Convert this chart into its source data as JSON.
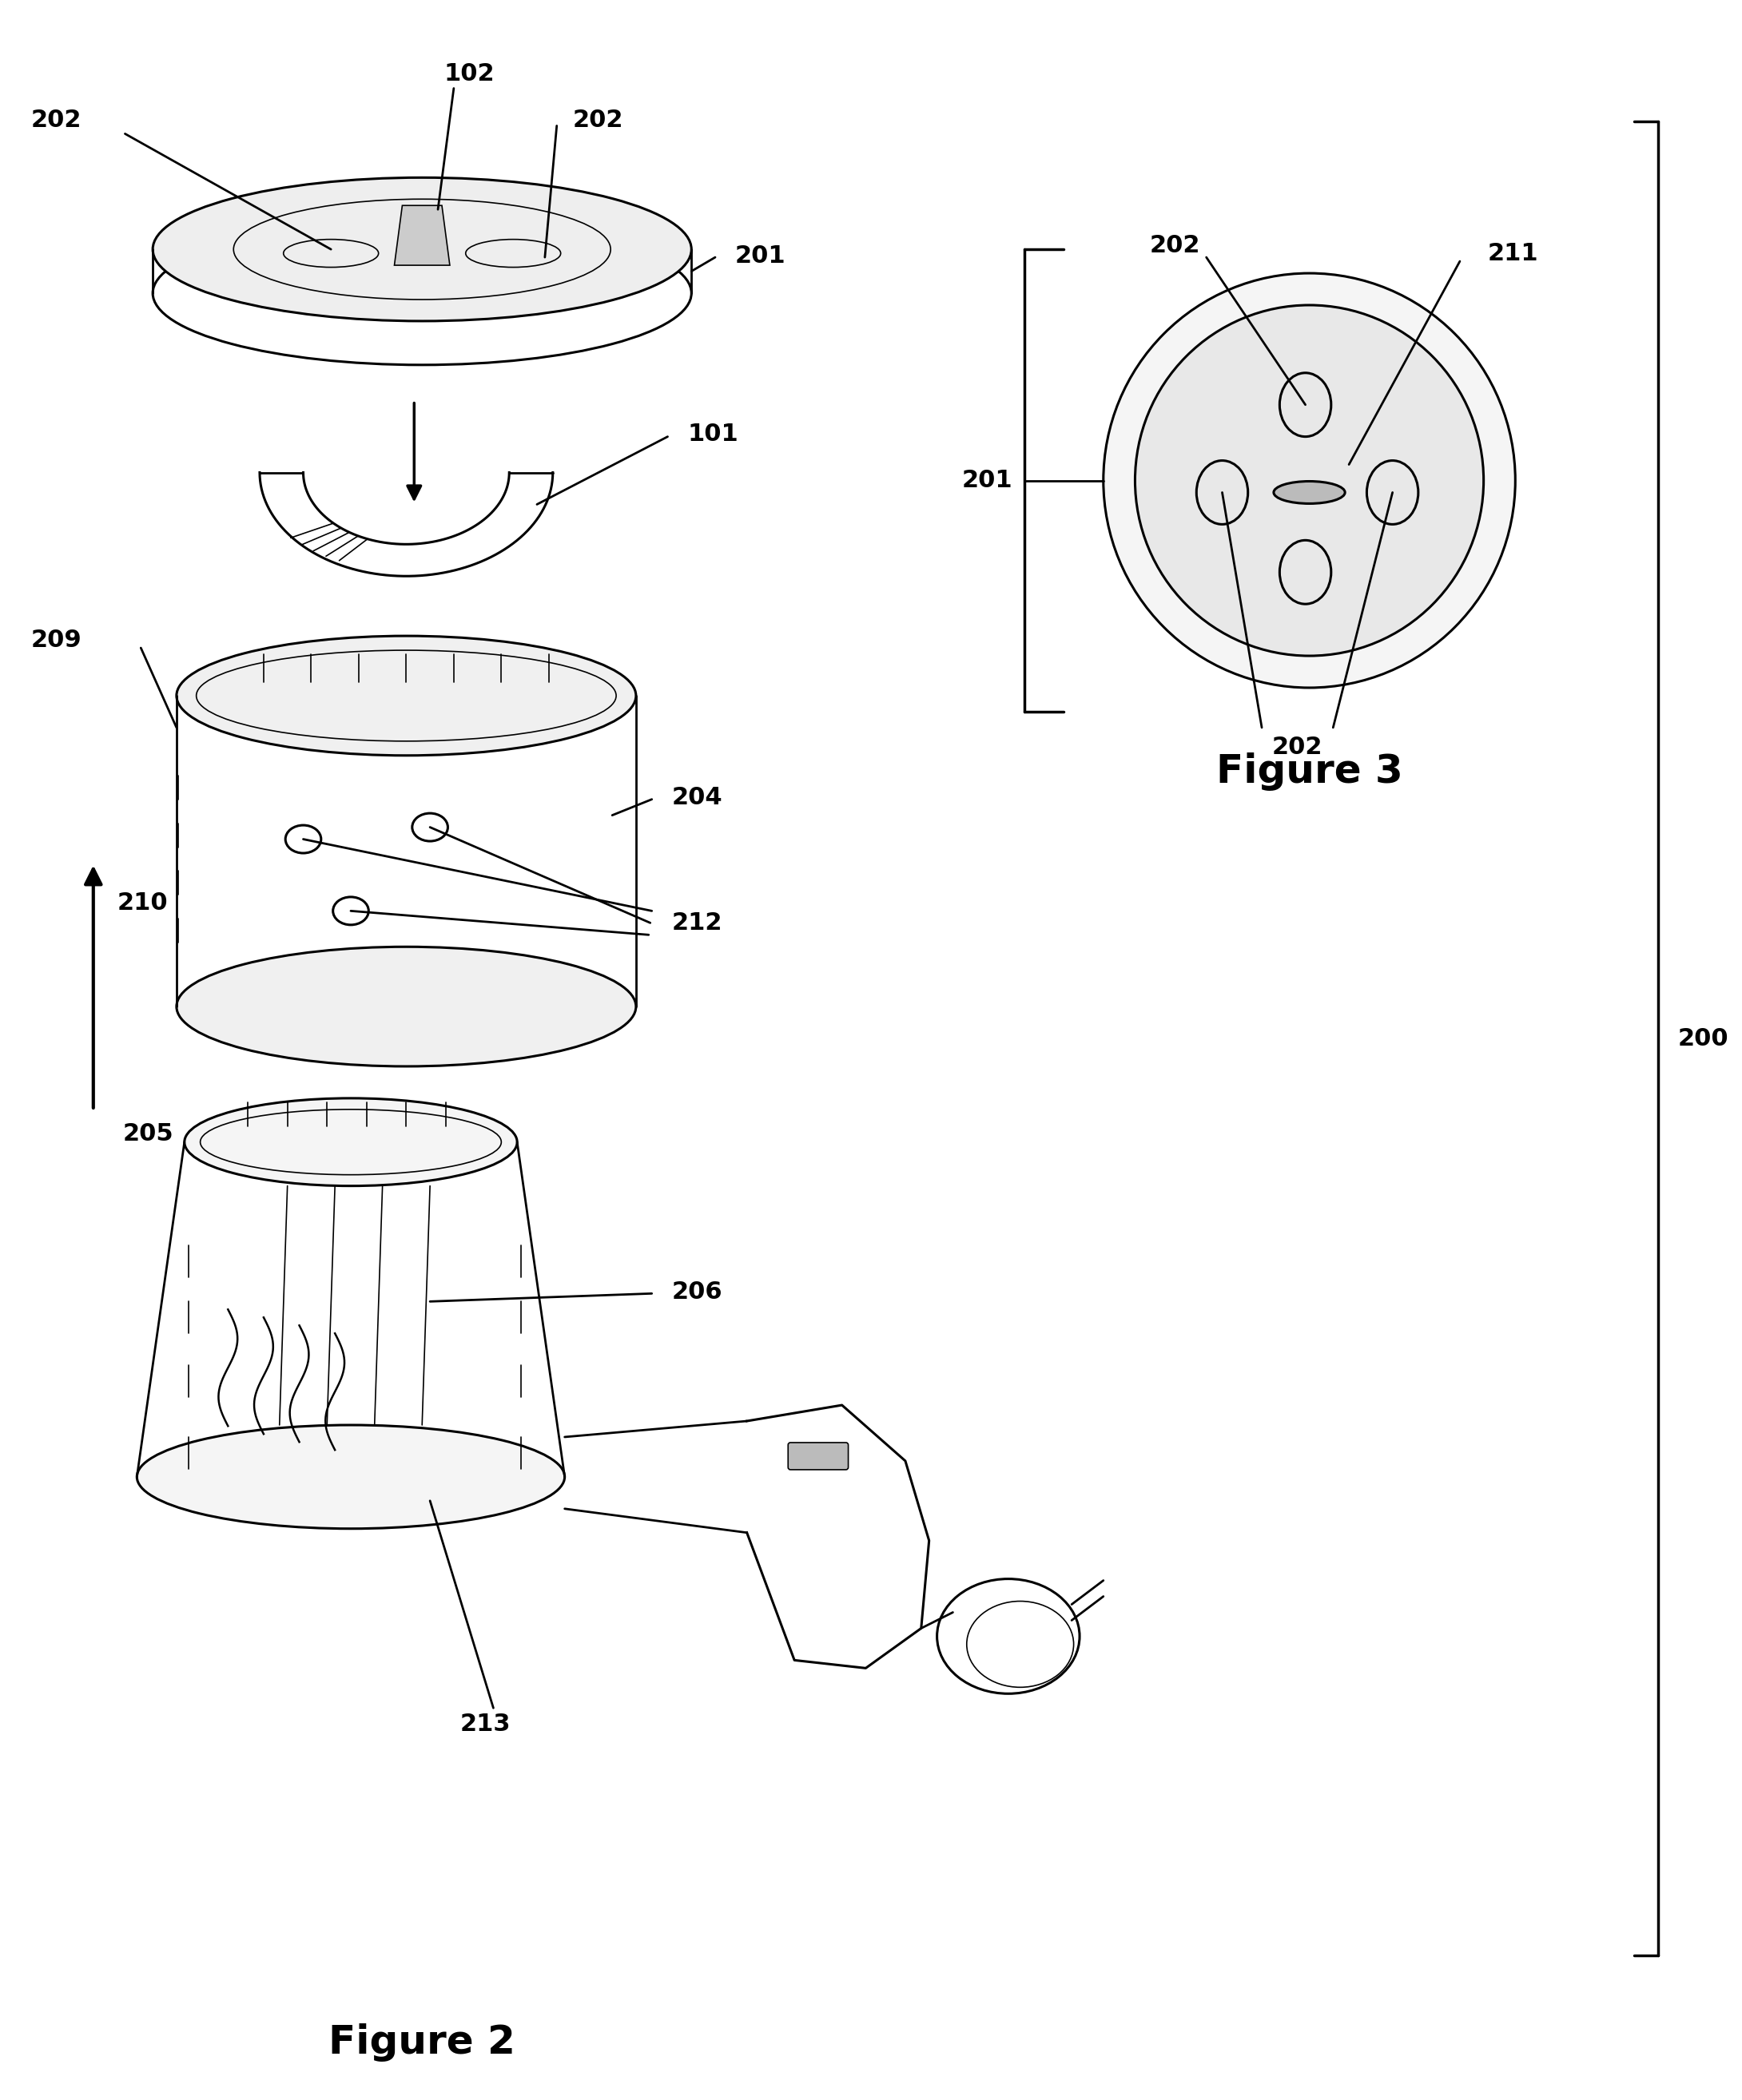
{
  "bg_color": "#ffffff",
  "line_color": "#000000",
  "fig_width": 21.8,
  "fig_height": 26.29,
  "figure2_title": "Figure 2",
  "figure3_title": "Figure 3",
  "lw_main": 2.2,
  "lw_thin": 1.2,
  "label_fs": 20
}
